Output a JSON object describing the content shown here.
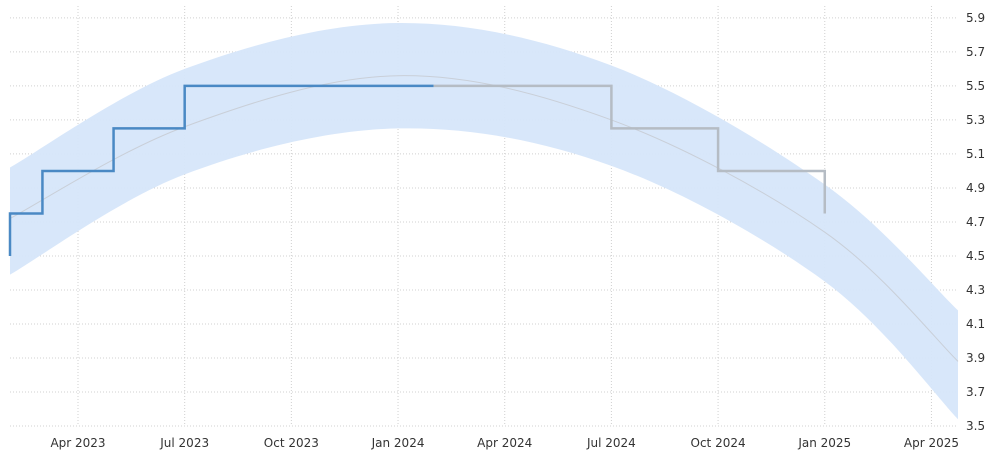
{
  "chart_data": {
    "type": "line",
    "y_axis": {
      "position": "right",
      "ticks": [
        3.5,
        3.7,
        3.9,
        4.1,
        4.3,
        4.5,
        4.7,
        4.9,
        5.1,
        5.3,
        5.5,
        5.7,
        5.9
      ],
      "range": [
        3.5,
        5.97
      ]
    },
    "x_axis": {
      "ticks": [
        "Apr 2023",
        "Jul 2023",
        "Oct 2023",
        "Jan 2024",
        "Apr 2024",
        "Jul 2024",
        "Oct 2024",
        "Jan 2025",
        "Apr 2025"
      ]
    },
    "grid": true,
    "series": [
      {
        "kind": "actual",
        "color": "#4a89c4",
        "points": [
          {
            "x": "Feb 2023",
            "y": 4.5
          },
          {
            "x": "Feb 2023",
            "y": 4.75
          },
          {
            "x": "Mar 2023",
            "y": 4.75
          },
          {
            "x": "Mar 2023",
            "y": 5.0
          },
          {
            "x": "May 2023",
            "y": 5.0
          },
          {
            "x": "May 2023",
            "y": 5.25
          },
          {
            "x": "Jul 2023",
            "y": 5.25
          },
          {
            "x": "Jul 2023",
            "y": 5.5
          },
          {
            "x": "Feb 2024",
            "y": 5.5
          }
        ]
      },
      {
        "kind": "forecast",
        "color": "#b5bcc4",
        "points": [
          {
            "x": "Feb 2024",
            "y": 5.5
          },
          {
            "x": "Jul 2024",
            "y": 5.5
          },
          {
            "x": "Jul 2024",
            "y": 5.25
          },
          {
            "x": "Oct 2024",
            "y": 5.25
          },
          {
            "x": "Oct 2024",
            "y": 5.0
          },
          {
            "x": "Jan 2025",
            "y": 5.0
          },
          {
            "x": "Jan 2025",
            "y": 4.75
          }
        ]
      }
    ],
    "trend": {
      "color": "#c9cfd8",
      "points": [
        {
          "x": "Feb 2023",
          "y": 4.72
        },
        {
          "x": "Jul 2023",
          "y": 5.26
        },
        {
          "x": "Jan 2024",
          "y": 5.56
        },
        {
          "x": "Jul 2024",
          "y": 5.3
        },
        {
          "x": "Jan 2025",
          "y": 4.64
        },
        {
          "x": "May 2025",
          "y": 3.88
        }
      ]
    },
    "band": {
      "color": "#d6e6fa",
      "upper": [
        {
          "x": "Feb 2023",
          "y": 5.02
        },
        {
          "x": "Jul 2023",
          "y": 5.6
        },
        {
          "x": "Jan 2024",
          "y": 5.87
        },
        {
          "x": "Jul 2024",
          "y": 5.62
        },
        {
          "x": "Jan 2025",
          "y": 4.92
        },
        {
          "x": "May 2025",
          "y": 4.18
        }
      ],
      "lower": [
        {
          "x": "Feb 2023",
          "y": 4.39
        },
        {
          "x": "Jul 2023",
          "y": 4.98
        },
        {
          "x": "Jan 2024",
          "y": 5.25
        },
        {
          "x": "Jul 2024",
          "y": 5.03
        },
        {
          "x": "Jan 2025",
          "y": 4.35
        },
        {
          "x": "May 2025",
          "y": 3.54
        }
      ]
    }
  }
}
